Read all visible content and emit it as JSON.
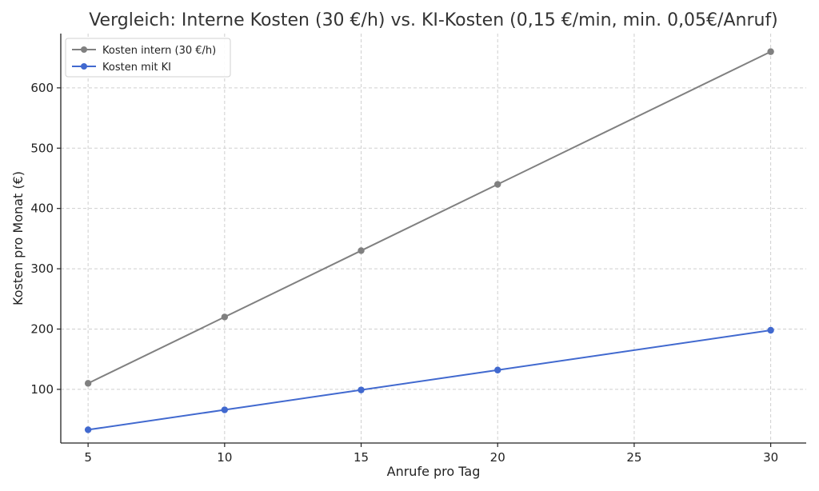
{
  "chart_data": {
    "type": "line",
    "title": "Vergleich: Interne Kosten (30 €/h) vs. KI-Kosten (0,15 €/min, min. 0,05€/Anruf)",
    "xlabel": "Anrufe pro Tag",
    "ylabel": "Kosten pro Monat (€)",
    "x": [
      5,
      10,
      15,
      20,
      30
    ],
    "xlim": [
      4,
      31.3
    ],
    "ylim": [
      11,
      690
    ],
    "xticks": [
      5,
      10,
      15,
      20,
      25,
      30
    ],
    "yticks": [
      100,
      200,
      300,
      400,
      500,
      600
    ],
    "grid": true,
    "legend_position": "top-left",
    "series": [
      {
        "name": "Kosten intern (30 €/h)",
        "color": "#808080",
        "values": [
          110,
          220,
          330,
          440,
          660
        ]
      },
      {
        "name": "Kosten mit KI",
        "color": "#4169cf",
        "values": [
          33,
          66,
          99,
          132,
          198
        ]
      }
    ]
  }
}
